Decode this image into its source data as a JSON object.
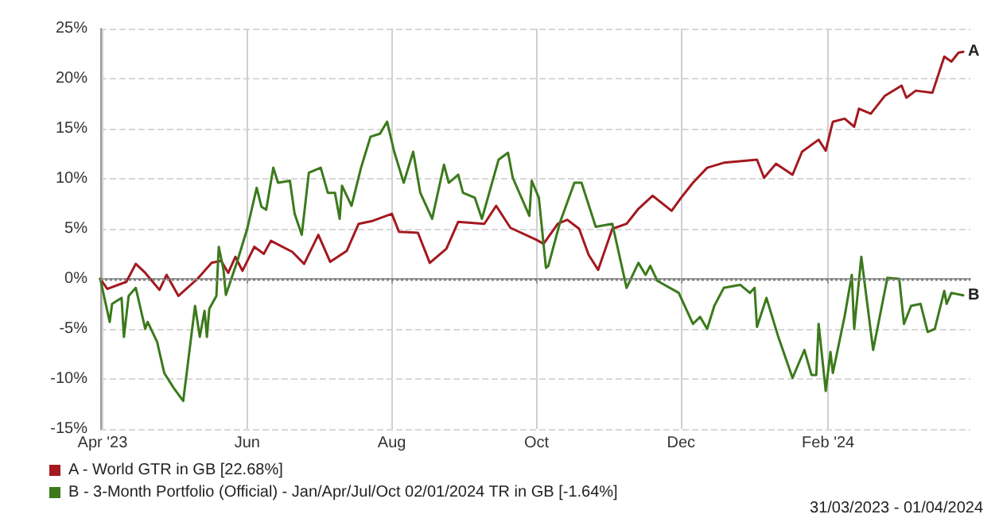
{
  "chart_data": {
    "type": "line",
    "xlim": [
      "2023-03-31",
      "2024-04-01"
    ],
    "xticks": [
      {
        "value": "2023-04-01",
        "label": "Apr '23"
      },
      {
        "value": "2023-06-01",
        "label": "Jun"
      },
      {
        "value": "2023-08-01",
        "label": "Aug"
      },
      {
        "value": "2023-10-01",
        "label": "Oct"
      },
      {
        "value": "2023-12-01",
        "label": "Dec"
      },
      {
        "value": "2024-02-01",
        "label": "Feb '24"
      }
    ],
    "ylim": [
      -15,
      25
    ],
    "yticks": [
      {
        "value": -15,
        "label": "-15%"
      },
      {
        "value": -10,
        "label": "-10%"
      },
      {
        "value": -5,
        "label": "-5%"
      },
      {
        "value": 0,
        "label": "0%"
      },
      {
        "value": 5,
        "label": "5%"
      },
      {
        "value": 10,
        "label": "10%"
      },
      {
        "value": 15,
        "label": "15%"
      },
      {
        "value": 20,
        "label": "20%"
      },
      {
        "value": 25,
        "label": "25%"
      }
    ],
    "grid": true,
    "legend": "bottom left",
    "marker": "none",
    "line_style": "solid",
    "series": [
      {
        "name": "A - World GTR in GB [22.68%]",
        "color": "#a3191f",
        "x": [
          "2023-03-31",
          "2023-04-03",
          "2023-04-11",
          "2023-04-15",
          "2023-04-19",
          "2023-04-25",
          "2023-04-28",
          "2023-05-03",
          "2023-05-11",
          "2023-05-17",
          "2023-05-21",
          "2023-05-24",
          "2023-05-27",
          "2023-05-30",
          "2023-06-04",
          "2023-06-08",
          "2023-06-11",
          "2023-06-20",
          "2023-06-25",
          "2023-07-01",
          "2023-07-06",
          "2023-07-13",
          "2023-07-18",
          "2023-07-24",
          "2023-08-01",
          "2023-08-04",
          "2023-08-12",
          "2023-08-17",
          "2023-08-24",
          "2023-08-29",
          "2023-09-09",
          "2023-09-14",
          "2023-09-20",
          "2023-10-01",
          "2023-10-04",
          "2023-10-10",
          "2023-10-14",
          "2023-10-19",
          "2023-10-23",
          "2023-10-27",
          "2023-11-02",
          "2023-11-08",
          "2023-11-13",
          "2023-11-19",
          "2023-11-27",
          "2023-12-01",
          "2023-12-06",
          "2023-12-12",
          "2023-12-19",
          "2024-01-02",
          "2024-01-05",
          "2024-01-10",
          "2024-01-17",
          "2024-01-21",
          "2024-01-28",
          "2024-01-31",
          "2024-02-03",
          "2024-02-08",
          "2024-02-12",
          "2024-02-14",
          "2024-02-19",
          "2024-02-25",
          "2024-03-03",
          "2024-03-05",
          "2024-03-09",
          "2024-03-16",
          "2024-03-21",
          "2024-03-24",
          "2024-03-27",
          "2024-03-29"
        ],
        "values": [
          0,
          -1.0,
          -0.3,
          1.5,
          0.6,
          -1.1,
          0.4,
          -1.7,
          0,
          1.6,
          1.8,
          0.6,
          2.2,
          0.8,
          3.2,
          2.5,
          3.8,
          2.7,
          1.5,
          4.4,
          1.7,
          2.8,
          5.5,
          5.8,
          6.5,
          4.7,
          4.6,
          1.6,
          3.0,
          5.7,
          5.5,
          7.3,
          5.1,
          3.9,
          3.5,
          5.5,
          5.9,
          5.0,
          2.4,
          0.9,
          5.0,
          5.5,
          7.0,
          8.3,
          6.8,
          8.1,
          9.6,
          11.1,
          11.6,
          11.9,
          10.1,
          11.5,
          10.4,
          12.7,
          13.9,
          12.8,
          15.7,
          16.0,
          15.2,
          17.0,
          16.5,
          18.3,
          19.3,
          18.1,
          18.8,
          18.6,
          22.2,
          21.7,
          22.6,
          22.68
        ]
      },
      {
        "name": "B - 3-Month Portfolio (Official) - Jan/Apr/Jul/Oct 02/01/2024 TR in GB [-1.64%]",
        "color": "#3b7a1c",
        "x": [
          "2023-03-31",
          "2023-04-04",
          "2023-04-05",
          "2023-04-09",
          "2023-04-10",
          "2023-04-12",
          "2023-04-15",
          "2023-04-19",
          "2023-04-20",
          "2023-04-24",
          "2023-04-27",
          "2023-05-01",
          "2023-05-05",
          "2023-05-07",
          "2023-05-10",
          "2023-05-12",
          "2023-05-14",
          "2023-05-15",
          "2023-05-16",
          "2023-05-19",
          "2023-05-20",
          "2023-05-22",
          "2023-05-23",
          "2023-05-28",
          "2023-06-01",
          "2023-06-05",
          "2023-06-07",
          "2023-06-09",
          "2023-06-12",
          "2023-06-14",
          "2023-06-19",
          "2023-06-21",
          "2023-06-24",
          "2023-06-27",
          "2023-07-02",
          "2023-07-05",
          "2023-07-08",
          "2023-07-10",
          "2023-07-11",
          "2023-07-15",
          "2023-07-19",
          "2023-07-23",
          "2023-07-27",
          "2023-07-30",
          "2023-08-02",
          "2023-08-06",
          "2023-08-10",
          "2023-08-13",
          "2023-08-18",
          "2023-08-23",
          "2023-08-25",
          "2023-08-29",
          "2023-08-31",
          "2023-09-05",
          "2023-09-08",
          "2023-09-15",
          "2023-09-19",
          "2023-09-21",
          "2023-09-28",
          "2023-09-29",
          "2023-10-02",
          "2023-10-05",
          "2023-10-06",
          "2023-10-11",
          "2023-10-17",
          "2023-10-20",
          "2023-10-26",
          "2023-11-02",
          "2023-11-08",
          "2023-11-13",
          "2023-11-16",
          "2023-11-18",
          "2023-11-21",
          "2023-11-30",
          "2023-12-06",
          "2023-12-09",
          "2023-12-12",
          "2023-12-15",
          "2023-12-19",
          "2023-12-26",
          "2023-12-30",
          "2024-01-01",
          "2024-01-02",
          "2024-01-06",
          "2024-01-11",
          "2024-01-17",
          "2024-01-22",
          "2024-01-25",
          "2024-01-27",
          "2024-01-28",
          "2024-01-31",
          "2024-02-02",
          "2024-02-03",
          "2024-02-08",
          "2024-02-11",
          "2024-02-12",
          "2024-02-15",
          "2024-02-20",
          "2024-02-26",
          "2024-03-02",
          "2024-03-04",
          "2024-03-07",
          "2024-03-11",
          "2024-03-14",
          "2024-03-17",
          "2024-03-21",
          "2024-03-22",
          "2024-03-24",
          "2024-03-29"
        ],
        "values": [
          0,
          -4.3,
          -2.5,
          -1.9,
          -5.8,
          -1.7,
          -0.9,
          -5.0,
          -4.3,
          -6.3,
          -9.4,
          -10.9,
          -12.2,
          -8.4,
          -2.7,
          -5.8,
          -3.2,
          -5.8,
          -3.0,
          -1.7,
          3.2,
          0.9,
          -1.6,
          1.9,
          5.0,
          9.1,
          7.2,
          6.9,
          11.1,
          9.6,
          9.8,
          6.5,
          4.4,
          10.6,
          11.1,
          8.6,
          8.6,
          6.0,
          9.3,
          7.3,
          11.1,
          14.2,
          14.5,
          15.7,
          12.7,
          9.6,
          12.7,
          8.6,
          6.0,
          11.4,
          9.6,
          10.4,
          8.6,
          8.1,
          6.0,
          11.9,
          12.6,
          10.1,
          6.3,
          9.8,
          8.1,
          1.1,
          1.3,
          5.7,
          9.6,
          9.6,
          5.2,
          5.5,
          -0.9,
          1.6,
          0.4,
          1.3,
          -0.2,
          -1.4,
          -4.5,
          -3.8,
          -5.0,
          -2.7,
          -0.9,
          -0.6,
          -1.4,
          -0.9,
          -4.8,
          -1.9,
          -5.8,
          -9.9,
          -7.1,
          -9.6,
          -9.6,
          -4.5,
          -11.2,
          -7.3,
          -9.4,
          -3.7,
          0.4,
          -5.0,
          2.2,
          -7.1,
          0.1,
          0,
          -4.5,
          -2.7,
          -2.5,
          -5.3,
          -5.0,
          -1.2,
          -2.5,
          -1.4,
          -1.64
        ]
      }
    ],
    "ref_lines": [
      {
        "axis": "y",
        "value": 0,
        "color": "#808080",
        "line_style": "dotted"
      }
    ],
    "annotations": [
      {
        "text": "A",
        "x": "2024-03-29",
        "y": 22.68
      },
      {
        "text": "B",
        "x": "2024-03-29",
        "y": -1.64
      },
      "31/03/2023 - 01/04/2024"
    ]
  }
}
